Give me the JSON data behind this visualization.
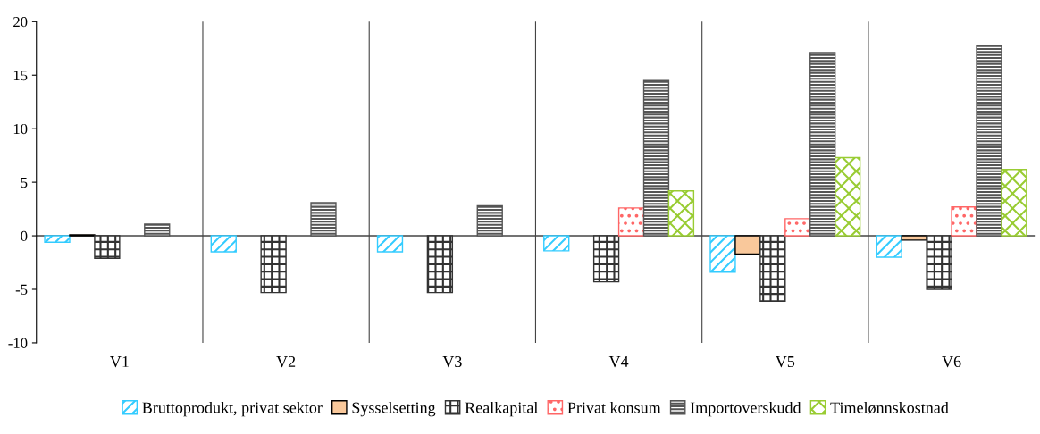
{
  "chart_data": {
    "type": "bar",
    "categories": [
      "V1",
      "V2",
      "V3",
      "V4",
      "V5",
      "V6"
    ],
    "series": [
      {
        "name": "Bruttoprodukt, privat sektor",
        "color": "#33ccff",
        "values": [
          -0.6,
          -1.5,
          -1.5,
          -1.4,
          -3.4,
          -2.0
        ]
      },
      {
        "name": "Sysselsetting",
        "color": "#f9c89b",
        "values": [
          0.1,
          null,
          null,
          null,
          -1.7,
          -0.4
        ]
      },
      {
        "name": "Realkapital",
        "color": "#333333",
        "values": [
          -2.1,
          -5.3,
          -5.3,
          -4.3,
          -6.1,
          -5.0
        ]
      },
      {
        "name": "Privat konsum",
        "color": "#ff6666",
        "values": [
          null,
          null,
          null,
          2.6,
          1.6,
          2.7
        ]
      },
      {
        "name": "Importoverskudd",
        "color": "#555555",
        "values": [
          1.1,
          3.1,
          2.8,
          14.5,
          17.1,
          17.8
        ]
      },
      {
        "name": "Timelønnskostnad",
        "color": "#99cc33",
        "values": [
          null,
          null,
          null,
          4.2,
          7.3,
          6.2
        ]
      }
    ],
    "ylim": [
      -10,
      20
    ],
    "yticks": [
      -10,
      -5,
      0,
      5,
      10,
      15,
      20
    ],
    "grid": "x",
    "legend": "bottom"
  }
}
